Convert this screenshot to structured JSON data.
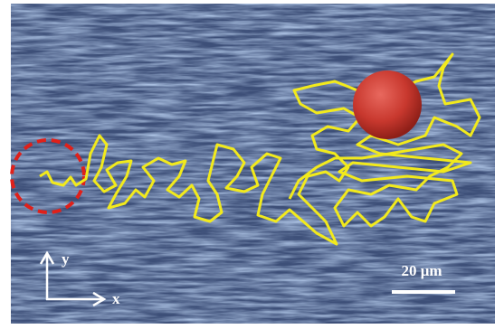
{
  "axes": {
    "y_label": "y",
    "x_label": "x"
  },
  "scale_bar": {
    "label": "20 μm"
  }
}
